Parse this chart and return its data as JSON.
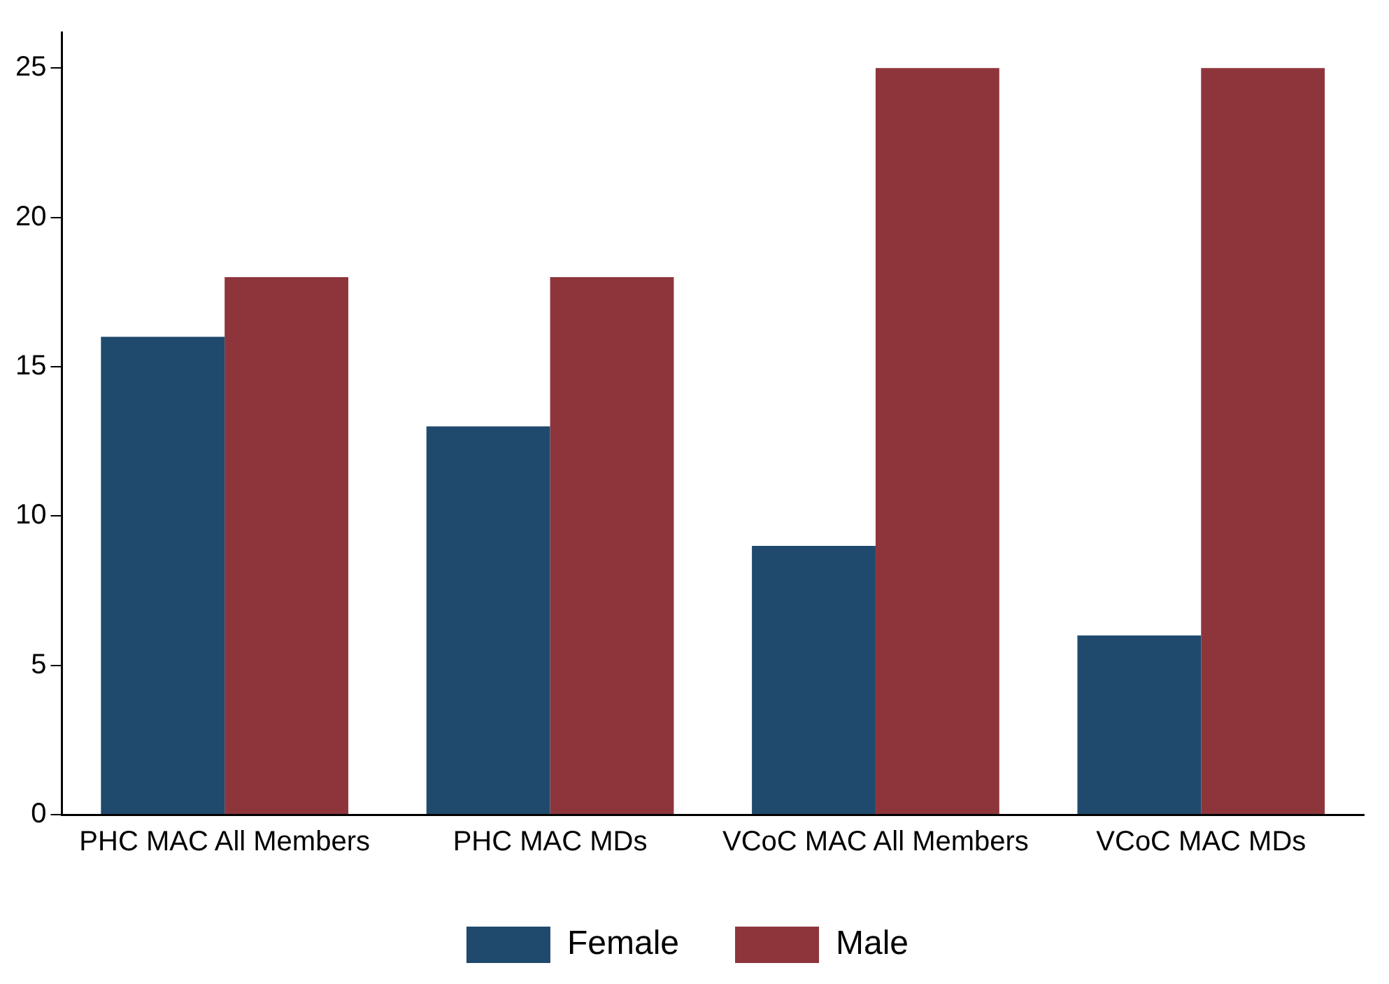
{
  "chart_data": {
    "type": "bar",
    "categories": [
      "PHC MAC All Members",
      "PHC MAC MDs",
      "VCoC MAC All Members",
      "VCoC MAC MDs"
    ],
    "series": [
      {
        "name": "Female",
        "color": "#1f4a6e",
        "values": [
          16,
          13,
          9,
          6
        ]
      },
      {
        "name": "Male",
        "color": "#8e353c",
        "values": [
          18,
          18,
          25,
          25
        ]
      }
    ],
    "ylim": [
      0,
      26.2
    ],
    "yticks": [
      0,
      5,
      10,
      15,
      20,
      25
    ],
    "grid": false,
    "legend": "bottom"
  }
}
